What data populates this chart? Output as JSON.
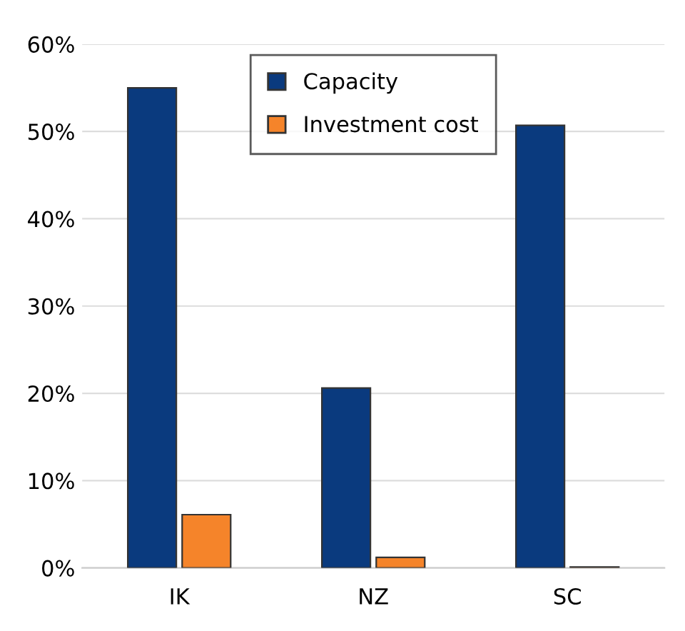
{
  "chart_data": {
    "type": "bar",
    "categories": [
      "IK",
      "NZ",
      "SC"
    ],
    "series": [
      {
        "name": "Capacity",
        "color": "#0a3a7e",
        "values": [
          55.0,
          20.6,
          50.7
        ]
      },
      {
        "name": "Investment cost",
        "color": "#f5842a",
        "values": [
          6.1,
          1.2,
          0.1
        ]
      }
    ],
    "ylim": [
      0,
      60
    ],
    "yticks": [
      {
        "value": 0,
        "label": "0%"
      },
      {
        "value": 10,
        "label": "10%"
      },
      {
        "value": 20,
        "label": "20%"
      },
      {
        "value": 30,
        "label": "30%"
      },
      {
        "value": 40,
        "label": "40%"
      },
      {
        "value": 50,
        "label": "50%"
      },
      {
        "value": 60,
        "label": "60%"
      }
    ],
    "grid": "y",
    "legend": "top"
  }
}
